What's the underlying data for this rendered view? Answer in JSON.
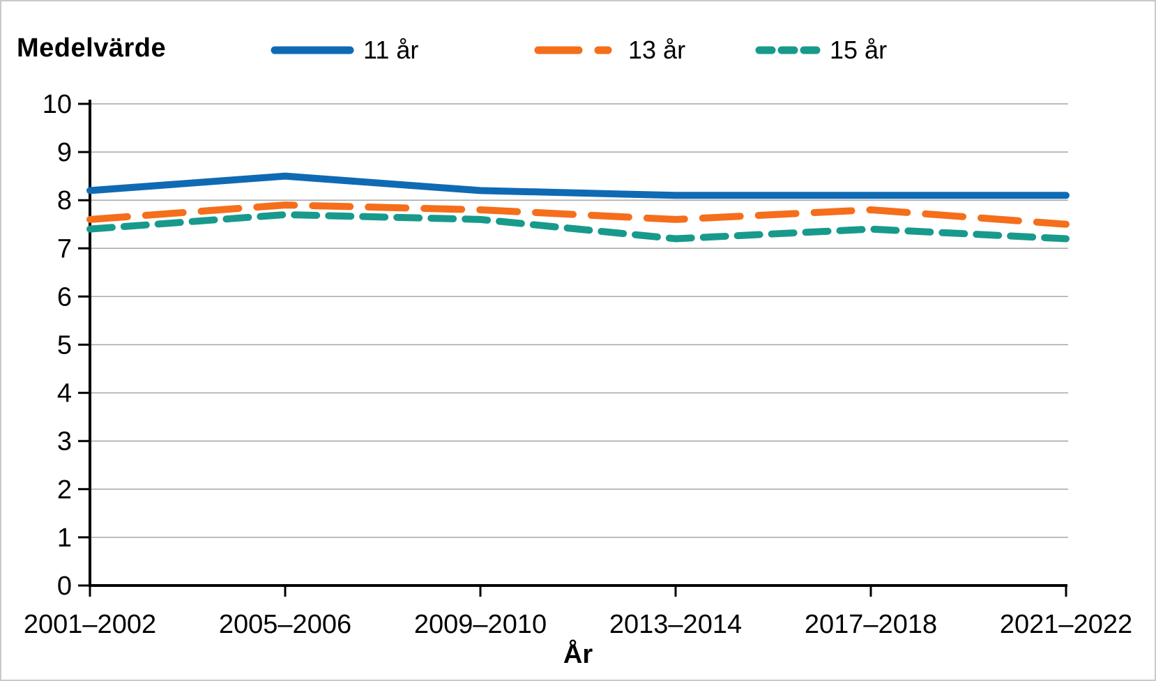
{
  "header": {
    "y_axis_title": "Medelvärde",
    "x_axis_title": "År"
  },
  "chart_data": {
    "type": "line",
    "title": "",
    "ylabel": "Medelvärde",
    "xlabel": "År",
    "categories": [
      "2001–2002",
      "2005–2006",
      "2009–2010",
      "2013–2014",
      "2017–2018",
      "2021–2022"
    ],
    "series": [
      {
        "name": "11 år",
        "color": "#0f6ab4",
        "dash": "solid",
        "values": [
          8.2,
          8.5,
          8.2,
          8.1,
          8.1,
          8.1
        ]
      },
      {
        "name": "13 år",
        "color": "#f56e1b",
        "dash": "long-dash",
        "values": [
          7.6,
          7.9,
          7.8,
          7.6,
          7.8,
          7.5
        ]
      },
      {
        "name": "15 år",
        "color": "#179a8c",
        "dash": "dash",
        "values": [
          7.4,
          7.7,
          7.6,
          7.2,
          7.4,
          7.2
        ]
      }
    ],
    "ylim": [
      0,
      10
    ],
    "y_ticks": [
      0,
      1,
      2,
      3,
      4,
      5,
      6,
      7,
      8,
      9,
      10
    ],
    "grid": "horizontal",
    "legend_position": "top",
    "colors": {
      "axis": "#000000",
      "gridline": "#a6a6a6",
      "text": "#000000"
    }
  }
}
